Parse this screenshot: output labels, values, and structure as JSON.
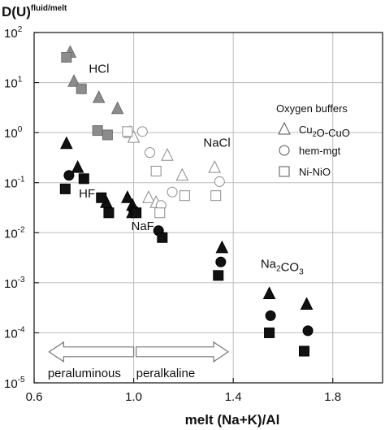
{
  "chart_data": {
    "type": "scatter",
    "title": "D(U)",
    "title_superscript": "fluid/melt",
    "xlabel": "melt (Na+K)/Al",
    "ylabel": "",
    "xlim": [
      0.6,
      2.0
    ],
    "ylim_log10": [
      -5,
      2
    ],
    "y_scale": "log",
    "x_ticks": [
      "0.6",
      "1.0",
      "1.4",
      "1.8"
    ],
    "x_tick_values": [
      0.6,
      1.0,
      1.4,
      1.8
    ],
    "y_ticks": [
      {
        "base": "10",
        "exp": "2",
        "log": 2
      },
      {
        "base": "10",
        "exp": "1",
        "log": 1
      },
      {
        "base": "10",
        "exp": "0",
        "log": 0
      },
      {
        "base": "10",
        "exp": "-1",
        "log": -1
      },
      {
        "base": "10",
        "exp": "-2",
        "log": -2
      },
      {
        "base": "10",
        "exp": "-3",
        "log": -3
      },
      {
        "base": "10",
        "exp": "-4",
        "log": -4
      },
      {
        "base": "10",
        "exp": "-5",
        "log": -5
      }
    ],
    "grid": true,
    "legend": {
      "title": "Oxygen buffers",
      "position": "top-right",
      "items": [
        {
          "shape": "triangle",
          "label_parts": [
            {
              "t": "Cu"
            },
            {
              "t": "2",
              "sub": true
            },
            {
              "t": "O-CuO"
            }
          ]
        },
        {
          "shape": "circle",
          "label_parts": [
            {
              "t": "hem-mgt"
            }
          ]
        },
        {
          "shape": "square",
          "label_parts": [
            {
              "t": "Ni-NiO"
            }
          ]
        }
      ]
    },
    "annotations": [
      {
        "text_parts": [
          {
            "t": "HCl"
          }
        ],
        "x": 0.82,
        "y_log": 1.2
      },
      {
        "text_parts": [
          {
            "t": "NaCl"
          }
        ],
        "x": 1.28,
        "y_log": -0.28
      },
      {
        "text_parts": [
          {
            "t": "HF"
          }
        ],
        "x": 0.78,
        "y_log": -1.3
      },
      {
        "text_parts": [
          {
            "t": "NaF"
          }
        ],
        "x": 0.99,
        "y_log": -1.95
      },
      {
        "text_parts": [
          {
            "t": "Na"
          },
          {
            "t": "2",
            "sub": true
          },
          {
            "t": "CO"
          },
          {
            "t": "3",
            "sub": true
          }
        ],
        "x": 1.51,
        "y_log": -2.7
      }
    ],
    "region_arrows": [
      {
        "label": "peraluminous",
        "from_x": 1.0,
        "to_x": 0.66,
        "y_log": -4.38
      },
      {
        "label": "peralkaline",
        "from_x": 1.01,
        "to_x": 1.38,
        "y_log": -4.38
      }
    ],
    "series": [
      {
        "name": "HCl",
        "color": "#8c8c8c",
        "points": [
          {
            "x": 0.745,
            "y": 40,
            "m": "triangle"
          },
          {
            "x": 0.76,
            "y": 10.5,
            "m": "triangle"
          },
          {
            "x": 0.86,
            "y": 5,
            "m": "triangle"
          },
          {
            "x": 0.935,
            "y": 3,
            "m": "triangle"
          },
          {
            "x": 0.73,
            "y": 32,
            "m": "square"
          },
          {
            "x": 0.79,
            "y": 7.5,
            "m": "square"
          },
          {
            "x": 0.855,
            "y": 1.1,
            "m": "square"
          },
          {
            "x": 0.895,
            "y": 0.9,
            "m": "square"
          }
        ]
      },
      {
        "name": "NaCl",
        "color": "#8c8c8c",
        "hollow": true,
        "points": [
          {
            "x": 0.985,
            "y": 1.0,
            "m": "triangle"
          },
          {
            "x": 1.0,
            "y": 0.8,
            "m": "triangle"
          },
          {
            "x": 1.035,
            "y": 1.05,
            "m": "circle"
          },
          {
            "x": 0.975,
            "y": 1.05,
            "m": "square"
          },
          {
            "x": 1.065,
            "y": 0.4,
            "m": "circle"
          },
          {
            "x": 1.135,
            "y": 0.35,
            "m": "triangle"
          },
          {
            "x": 1.195,
            "y": 0.14,
            "m": "triangle"
          },
          {
            "x": 1.09,
            "y": 0.17,
            "m": "square"
          },
          {
            "x": 1.06,
            "y": 0.05,
            "m": "triangle"
          },
          {
            "x": 1.09,
            "y": 0.04,
            "m": "triangle"
          },
          {
            "x": 1.11,
            "y": 0.035,
            "m": "circle"
          },
          {
            "x": 1.155,
            "y": 0.065,
            "m": "circle"
          },
          {
            "x": 1.205,
            "y": 0.055,
            "m": "square"
          },
          {
            "x": 1.105,
            "y": 0.025,
            "m": "square"
          },
          {
            "x": 1.325,
            "y": 0.2,
            "m": "triangle"
          },
          {
            "x": 1.345,
            "y": 0.105,
            "m": "circle"
          },
          {
            "x": 1.33,
            "y": 0.055,
            "m": "square"
          }
        ]
      },
      {
        "name": "HF",
        "color": "#111111",
        "points": [
          {
            "x": 0.73,
            "y": 0.6,
            "m": "triangle"
          },
          {
            "x": 0.775,
            "y": 0.2,
            "m": "triangle"
          },
          {
            "x": 0.74,
            "y": 0.14,
            "m": "circle"
          },
          {
            "x": 0.725,
            "y": 0.075,
            "m": "square"
          },
          {
            "x": 0.8,
            "y": 0.12,
            "m": "square"
          }
        ]
      },
      {
        "name": "NaF",
        "color": "#111111",
        "points": [
          {
            "x": 0.89,
            "y": 0.04,
            "m": "triangle"
          },
          {
            "x": 0.975,
            "y": 0.05,
            "m": "triangle"
          },
          {
            "x": 0.995,
            "y": 0.035,
            "m": "triangle"
          },
          {
            "x": 1.0,
            "y": 0.028,
            "m": "circle"
          },
          {
            "x": 0.995,
            "y": 0.025,
            "m": "triangle"
          },
          {
            "x": 0.87,
            "y": 0.05,
            "m": "square"
          },
          {
            "x": 0.9,
            "y": 0.025,
            "m": "square"
          },
          {
            "x": 1.01,
            "y": 0.025,
            "m": "square"
          },
          {
            "x": 1.1,
            "y": 0.011,
            "m": "circle"
          },
          {
            "x": 1.115,
            "y": 0.008,
            "m": "square"
          }
        ]
      },
      {
        "name": "Na2CO3",
        "color": "#111111",
        "points": [
          {
            "x": 1.355,
            "y": 0.005,
            "m": "triangle"
          },
          {
            "x": 1.35,
            "y": 0.0026,
            "m": "circle"
          },
          {
            "x": 1.34,
            "y": 0.0014,
            "m": "square"
          },
          {
            "x": 1.545,
            "y": 0.0006,
            "m": "triangle"
          },
          {
            "x": 1.55,
            "y": 0.00022,
            "m": "circle"
          },
          {
            "x": 1.545,
            "y": 0.0001,
            "m": "square"
          },
          {
            "x": 1.695,
            "y": 0.00037,
            "m": "triangle"
          },
          {
            "x": 1.7,
            "y": 0.00011,
            "m": "circle"
          },
          {
            "x": 1.685,
            "y": 4.3e-05,
            "m": "square"
          }
        ]
      }
    ]
  }
}
